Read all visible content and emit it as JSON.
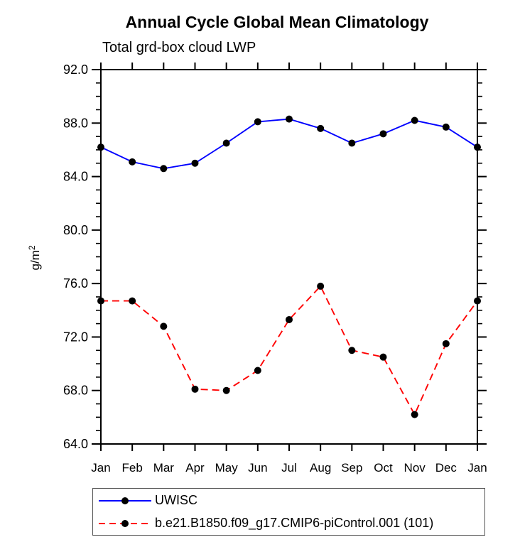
{
  "chart_data": {
    "type": "line",
    "title": "Annual Cycle Global Mean Climatology",
    "subtitle": "Total grd-box cloud LWP",
    "ylabel": "g/m²",
    "xlabel": "",
    "categories": [
      "Jan",
      "Feb",
      "Mar",
      "Apr",
      "May",
      "Jun",
      "Jul",
      "Aug",
      "Sep",
      "Oct",
      "Nov",
      "Dec",
      "Jan"
    ],
    "ylim": [
      64.0,
      92.0
    ],
    "ytick_major_values": [
      64.0,
      68.0,
      72.0,
      76.0,
      80.0,
      84.0,
      88.0,
      92.0
    ],
    "ytick_labels": [
      "64.0",
      "68.0",
      "72.0",
      "76.0",
      "80.0",
      "84.0",
      "88.0",
      "92.0"
    ],
    "ytick_minor_step": 1.0,
    "grid": false,
    "frame": "box-outward-ticks",
    "legend_position": "bottom-left",
    "axis_color": "#000000",
    "series": [
      {
        "name": "UWISC",
        "color": "#0000ff",
        "style": "solid",
        "marker": "circle",
        "marker_color": "#000000",
        "values": [
          86.2,
          85.1,
          84.6,
          85.0,
          86.5,
          88.1,
          88.3,
          87.6,
          86.5,
          87.2,
          88.2,
          87.7,
          86.2
        ]
      },
      {
        "name": "b.e21.B1850.f09_g17.CMIP6-piControl.001 (101)",
        "color": "#ff0000",
        "style": "dashed",
        "marker": "circle",
        "marker_color": "#000000",
        "values": [
          74.7,
          74.7,
          72.8,
          68.1,
          68.0,
          69.5,
          73.3,
          75.8,
          71.0,
          70.5,
          66.2,
          71.5,
          74.7
        ]
      }
    ]
  }
}
